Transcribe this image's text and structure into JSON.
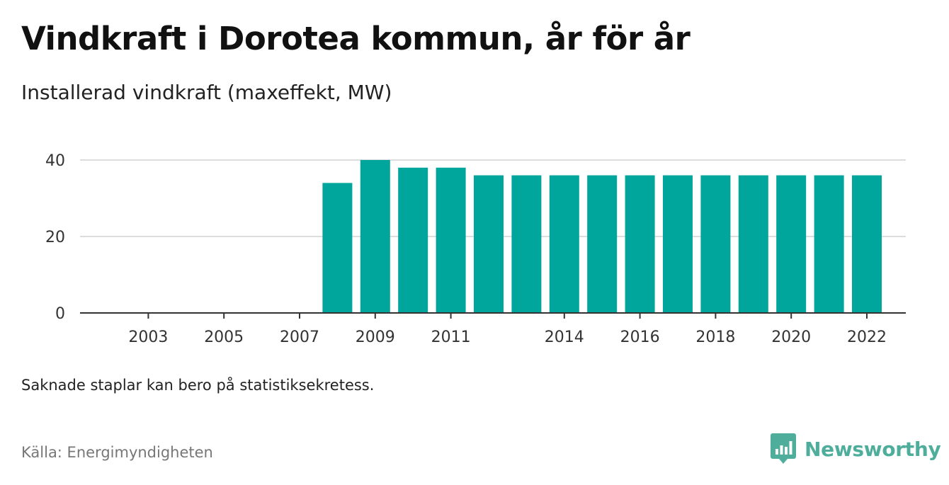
{
  "header": {
    "title": "Vindkraft i Dorotea kommun, år för år",
    "subtitle": "Installerad vindkraft (maxeffekt, MW)"
  },
  "footer": {
    "note": "Saknade staplar kan bero på statistiksekretess.",
    "source": "Källa: Energimyndigheten",
    "brand": "Newsworthy"
  },
  "colors": {
    "bar": "#00a59b",
    "brand": "#4fae9b",
    "grid": "#dddddd",
    "axis": "#333333"
  },
  "chart_data": {
    "type": "bar",
    "title": "Vindkraft i Dorotea kommun, år för år",
    "subtitle": "Installerad vindkraft (maxeffekt, MW)",
    "categories": [
      "2002",
      "2003",
      "2004",
      "2005",
      "2006",
      "2007",
      "2008",
      "2009",
      "2010",
      "2011",
      "2012",
      "2013",
      "2014",
      "2015",
      "2016",
      "2017",
      "2018",
      "2019",
      "2020",
      "2021",
      "2022"
    ],
    "values": [
      0,
      0,
      0,
      0,
      0,
      0,
      34,
      40,
      38,
      38,
      36,
      36,
      36,
      36,
      36,
      36,
      36,
      36,
      36,
      36,
      36
    ],
    "x_tick_labels": [
      "2003",
      "2005",
      "2007",
      "2009",
      "2011",
      "2014",
      "2016",
      "2018",
      "2020",
      "2022"
    ],
    "y_ticks": [
      0,
      20,
      40
    ],
    "ylim": [
      0,
      40
    ],
    "grid": true,
    "legend": "none"
  }
}
